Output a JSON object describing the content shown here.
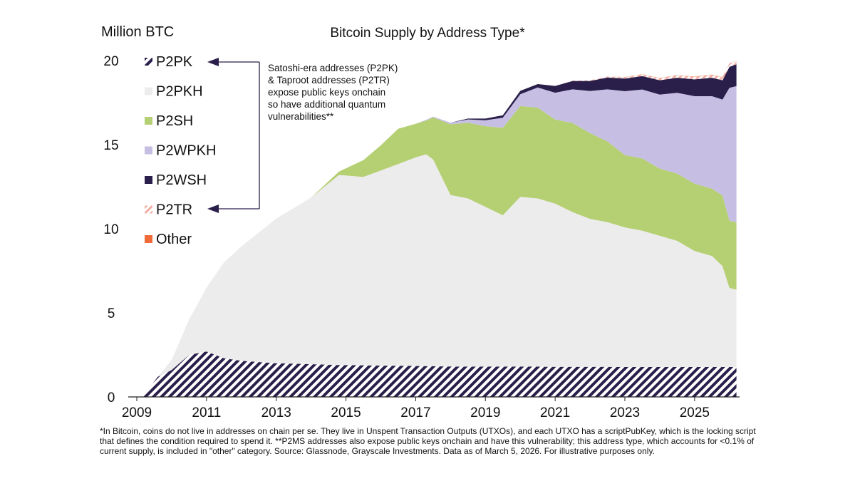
{
  "chart_data": {
    "type": "area",
    "title": "Bitcoin Supply by Address Type*",
    "ylabel": "Million BTC",
    "xlabel": "",
    "xlim": [
      2009,
      2026.25
    ],
    "ylim": [
      0,
      20
    ],
    "grid": false,
    "legend_position": "top-left",
    "x_ticks": [
      "2009",
      "2011",
      "2013",
      "2015",
      "2017",
      "2019",
      "2021",
      "2023",
      "2025"
    ],
    "x_tick_values": [
      2009,
      2011,
      2013,
      2015,
      2017,
      2019,
      2021,
      2023,
      2025
    ],
    "y_ticks": [
      "0",
      "5",
      "10",
      "15",
      "20"
    ],
    "y_tick_values": [
      0,
      5,
      10,
      15,
      20
    ],
    "x": [
      2009.2,
      2009.6,
      2010.0,
      2010.5,
      2011.0,
      2011.5,
      2012.0,
      2013.0,
      2014.0,
      2014.8,
      2015.5,
      2016.0,
      2016.5,
      2017.0,
      2017.3,
      2017.5,
      2018.0,
      2018.5,
      2019.0,
      2019.5,
      2020.0,
      2020.5,
      2021.0,
      2021.5,
      2022.0,
      2022.5,
      2023.0,
      2023.5,
      2024.0,
      2024.5,
      2025.0,
      2025.5,
      2025.8,
      2026.0,
      2026.2
    ],
    "series": [
      {
        "name": "P2PK",
        "color": "#2a1f4a",
        "pattern": "hatch",
        "values": [
          0.1,
          1.2,
          1.6,
          2.5,
          2.7,
          2.3,
          2.15,
          2.0,
          1.95,
          1.9,
          1.88,
          1.86,
          1.85,
          1.84,
          1.83,
          1.82,
          1.81,
          1.8,
          1.8,
          1.8,
          1.8,
          1.8,
          1.79,
          1.79,
          1.79,
          1.79,
          1.78,
          1.78,
          1.78,
          1.78,
          1.78,
          1.78,
          1.78,
          1.78,
          1.78
        ]
      },
      {
        "name": "P2PKH",
        "color": "#ececec",
        "values": [
          0.0,
          0.0,
          0.6,
          2.1,
          3.8,
          5.7,
          6.8,
          8.6,
          9.9,
          11.3,
          11.2,
          11.6,
          12.0,
          12.4,
          12.6,
          12.3,
          10.2,
          10.0,
          9.5,
          9.0,
          10.1,
          10.0,
          9.7,
          9.2,
          8.8,
          8.6,
          8.3,
          8.1,
          7.8,
          7.5,
          6.9,
          6.6,
          6.0,
          4.7,
          4.6
        ]
      },
      {
        "name": "P2SH",
        "color": "#b5cf73",
        "values": [
          0.0,
          0.0,
          0.0,
          0.0,
          0.0,
          0.0,
          0.0,
          0.0,
          0.0,
          0.2,
          1.0,
          1.5,
          2.1,
          2.0,
          2.0,
          2.5,
          4.2,
          4.5,
          4.8,
          5.2,
          5.4,
          5.4,
          5.0,
          5.3,
          5.1,
          4.8,
          4.3,
          4.3,
          4.0,
          4.0,
          4.0,
          4.0,
          4.2,
          4.0,
          4.0
        ]
      },
      {
        "name": "P2WPKH",
        "color": "#c6bfe3",
        "values": [
          0.0,
          0.0,
          0.0,
          0.0,
          0.0,
          0.0,
          0.0,
          0.0,
          0.0,
          0.0,
          0.0,
          0.0,
          0.0,
          0.0,
          0.05,
          0.05,
          0.1,
          0.2,
          0.35,
          0.6,
          0.7,
          1.2,
          1.6,
          2.0,
          2.5,
          3.1,
          3.8,
          4.1,
          4.4,
          4.8,
          5.2,
          5.5,
          5.7,
          7.9,
          8.1
        ]
      },
      {
        "name": "P2WSH",
        "color": "#2a1f4a",
        "values": [
          0.0,
          0.0,
          0.0,
          0.0,
          0.0,
          0.0,
          0.0,
          0.0,
          0.0,
          0.0,
          0.0,
          0.0,
          0.0,
          0.0,
          0.0,
          0.0,
          0.0,
          0.05,
          0.1,
          0.15,
          0.2,
          0.2,
          0.4,
          0.5,
          0.6,
          0.7,
          0.75,
          0.8,
          0.85,
          0.9,
          1.0,
          1.1,
          1.15,
          1.25,
          1.3
        ]
      },
      {
        "name": "P2TR",
        "color": "#f2b0a6",
        "pattern": "hatch",
        "values": [
          0.0,
          0.0,
          0.0,
          0.0,
          0.0,
          0.0,
          0.0,
          0.0,
          0.0,
          0.0,
          0.0,
          0.0,
          0.0,
          0.0,
          0.0,
          0.0,
          0.0,
          0.0,
          0.0,
          0.0,
          0.0,
          0.0,
          0.0,
          0.02,
          0.04,
          0.06,
          0.08,
          0.1,
          0.12,
          0.14,
          0.16,
          0.17,
          0.18,
          0.19,
          0.2
        ]
      },
      {
        "name": "Other",
        "color": "#f06a3a",
        "values": [
          0.0,
          0.0,
          0.0,
          0.0,
          0.0,
          0.0,
          0.0,
          0.0,
          0.0,
          0.0,
          0.0,
          0.0,
          0.0,
          0.0,
          0.0,
          0.0,
          0.0,
          0.0,
          0.0,
          0.0,
          0.0,
          0.0,
          0.0,
          0.0,
          0.0,
          0.0,
          0.01,
          0.01,
          0.01,
          0.01,
          0.01,
          0.01,
          0.01,
          0.01,
          0.01
        ]
      }
    ],
    "legend": [
      "P2PK",
      "P2PKH",
      "P2SH",
      "P2WPKH",
      "P2WSH",
      "P2TR",
      "Other"
    ],
    "annotation": [
      "Satoshi-era addresses (P2PK)",
      "& Taproot addresses (P2TR)",
      "expose public keys onchain",
      "so have additional quantum",
      "vulnerabilities**"
    ]
  },
  "footnote": "*In Bitcoin, coins do not live in addresses on chain per se. They live in Unspent Transaction Outputs (UTXOs), and each UTXO has a scriptPubKey, which is the locking script that defines the condition required to spend it. **P2MS addresses also expose public keys onchain and have this vulnerability; this address type, which accounts for <0.1% of current supply, is included in \"other\" category. Source: Glassnode, Grayscale Investments. Data as of March 5, 2026. For illustrative purposes only."
}
